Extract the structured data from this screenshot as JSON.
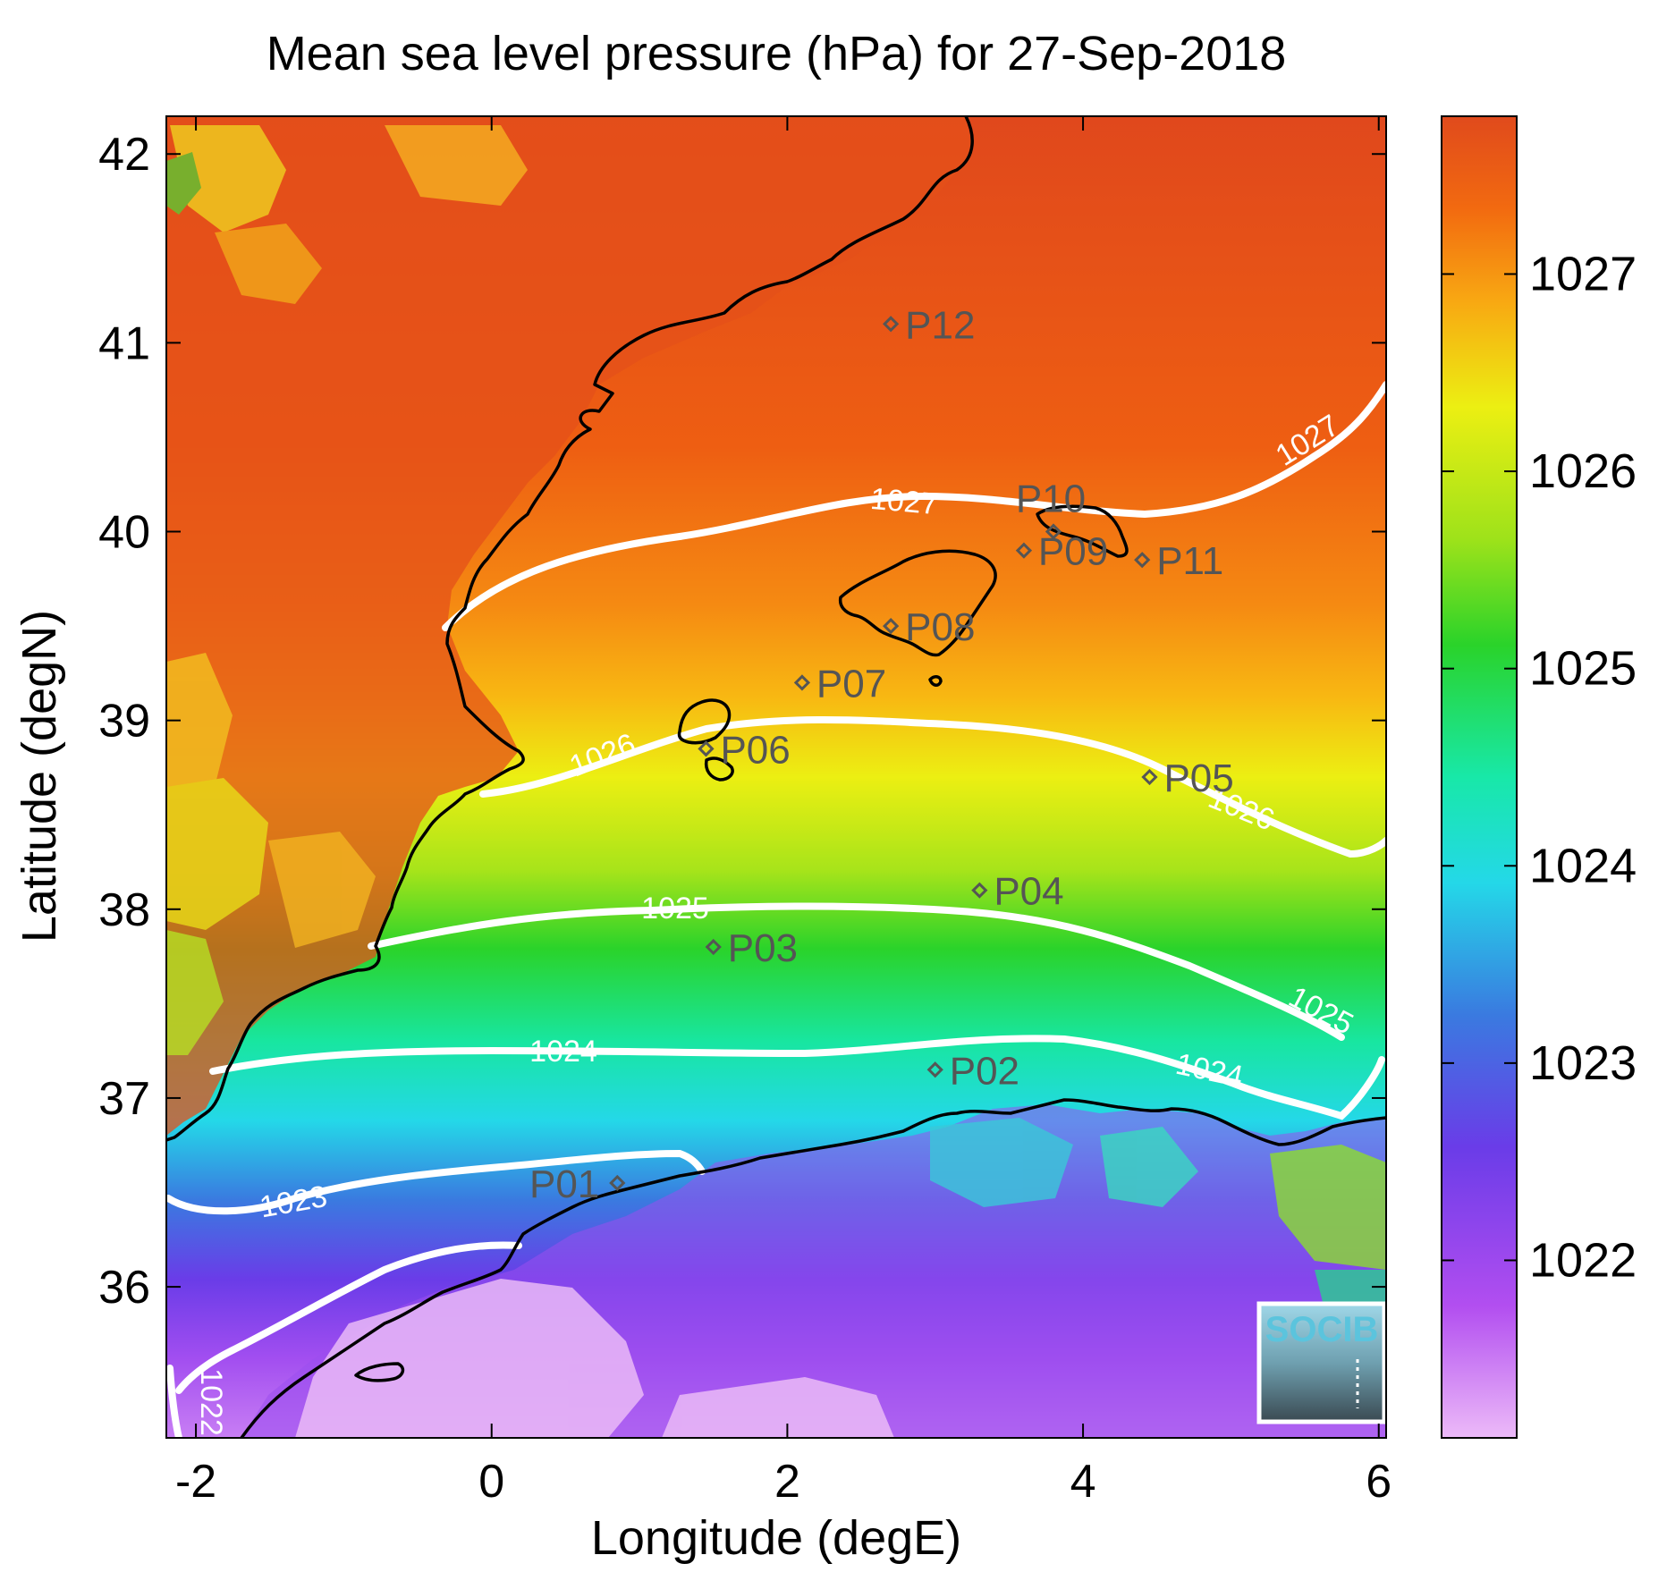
{
  "title": "Mean sea level pressure (hPa) for 27-Sep-2018",
  "map": {
    "xlabel": "Longitude (degE)",
    "ylabel": "Latitude (degN)",
    "lon_range": [
      -2.2,
      6.05
    ],
    "lat_range": [
      35.2,
      42.2
    ],
    "x_ticks": [
      "-2",
      "0",
      "2",
      "4",
      "6"
    ],
    "y_ticks": [
      "36",
      "37",
      "38",
      "39",
      "40",
      "41",
      "42"
    ]
  },
  "colorbar": {
    "range": [
      1021.1,
      1027.8
    ],
    "tick_labels": [
      "1022",
      "1023",
      "1024",
      "1025",
      "1026",
      "1027"
    ],
    "colormap": [
      "#e9b5f6",
      "#b24ef0",
      "#6a3ce8",
      "#3a7ae0",
      "#24d8e8",
      "#18e8a8",
      "#2ad32a",
      "#9ee21a",
      "#ecef12",
      "#f8a812",
      "#f26a10",
      "#e04a1c"
    ]
  },
  "contours": [
    {
      "level": "1027",
      "labels": [
        "1027",
        "1027"
      ]
    },
    {
      "level": "1026",
      "labels": [
        "1026",
        "1026"
      ]
    },
    {
      "level": "1025",
      "labels": [
        "1025",
        "1025"
      ]
    },
    {
      "level": "1024",
      "labels": [
        "1024",
        "1024"
      ]
    },
    {
      "level": "1023",
      "labels": [
        "1023"
      ]
    },
    {
      "level": "1022",
      "labels": [
        "1022"
      ]
    }
  ],
  "stations": [
    {
      "id": "P01",
      "lon": 0.85,
      "lat": 36.55
    },
    {
      "id": "P02",
      "lon": 3.0,
      "lat": 37.15
    },
    {
      "id": "P03",
      "lon": 1.5,
      "lat": 37.8
    },
    {
      "id": "P04",
      "lon": 3.3,
      "lat": 38.1
    },
    {
      "id": "P05",
      "lon": 4.45,
      "lat": 38.7
    },
    {
      "id": "P06",
      "lon": 1.45,
      "lat": 38.85
    },
    {
      "id": "P07",
      "lon": 2.1,
      "lat": 39.2
    },
    {
      "id": "P08",
      "lon": 2.7,
      "lat": 39.5
    },
    {
      "id": "P09",
      "lon": 3.6,
      "lat": 39.9
    },
    {
      "id": "P10",
      "lon": 3.8,
      "lat": 40.0
    },
    {
      "id": "P11",
      "lon": 4.4,
      "lat": 39.85
    },
    {
      "id": "P12",
      "lon": 2.7,
      "lat": 41.1
    }
  ],
  "logo": {
    "text": "SOCIB"
  }
}
